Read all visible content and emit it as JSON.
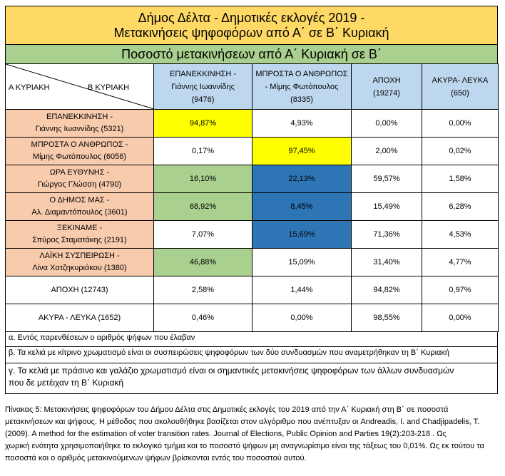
{
  "title": {
    "line1": "Δήμος Δέλτα - Δημοτικές εκλογές 2019 -",
    "line2": "Μετακινήσεις ψηφοφόρων από Α΄ σε Β΄ Κυριακή"
  },
  "subtitle": "Ποσοστό μετακινήσεων από Α΄ Κυριακή σε Β΄",
  "corner": {
    "left": "Α ΚΥΡΙΑΚΗ",
    "right": "Β ΚΥΡΙΑΚΗ"
  },
  "columns": [
    {
      "l1": "ΕΠΑΝΕΚΚΙΝΗΣΗ -",
      "l2": "Γιάννης Ιωαννίδης",
      "l3": "(9476)"
    },
    {
      "l1": "ΜΠΡΟΣΤΑ Ο ΑΝΘΡΩΠΟΣ",
      "l2": "- Μίμης Φωτόπουλος",
      "l3": "(8335)"
    },
    {
      "l1": "ΑΠΟΧΗ",
      "l2": "(19274)",
      "l3": ""
    },
    {
      "l1": "ΑΚΥΡΑ- ΛΕΥΚΑ",
      "l2": "(650)",
      "l3": ""
    }
  ],
  "rows": [
    {
      "l1": "ΕΠΑΝΕΚΚΙΝΗΣΗ -",
      "l2": "Γιάννης Ιωαννίδης (5321)",
      "cells": [
        "94,87%",
        "4,93%",
        "0,00%",
        "0,00%"
      ]
    },
    {
      "l1": "ΜΠΡΟΣΤΑ Ο ΑΝΘΡΩΠΟΣ -",
      "l2": "Μίμης Φωτόπουλος (6056)",
      "cells": [
        "0,17%",
        "97,45%",
        "2,00%",
        "0,02%"
      ]
    },
    {
      "l1": "ΩΡΑ ΕΥΘΥΝΗΣ -",
      "l2": "Γιώργος Γλώσση (4790)",
      "cells": [
        "16,10%",
        "22,13%",
        "59,57%",
        "1,58%"
      ]
    },
    {
      "l1": "Ο ΔΗΜΟΣ ΜΑΣ -",
      "l2": "Αλ. Διαμαντόπουλος (3601)",
      "cells": [
        "68,92%",
        "8,45%",
        "15,49%",
        "6,28%"
      ]
    },
    {
      "l1": "ΞΕΚΙΝΑΜΕ -",
      "l2": "Σπύρος Σταματάκης (2191)",
      "cells": [
        "7,07%",
        "15,69%",
        "71,36%",
        "4,53%"
      ]
    },
    {
      "l1": "ΛΑΪΚΗ ΣΥΣΠΕΙΡΩΣΗ -",
      "l2": "Λίνα Χατζηκυριάκου (1380)",
      "cells": [
        "46,88%",
        "15,09%",
        "31,40%",
        "4,77%"
      ]
    },
    {
      "l1": "ΑΠΟΧΗ (12743)",
      "l2": "",
      "cells": [
        "2,58%",
        "1,44%",
        "94,82%",
        "0,97%"
      ]
    },
    {
      "l1": "ΑΚΥΡΑ - ΛΕΥΚΑ (1652)",
      "l2": "",
      "cells": [
        "0,46%",
        "0,00%",
        "98,55%",
        "0,00%"
      ]
    }
  ],
  "notes": {
    "a": "α. Εντός παρενθέσεων ο αριθμός ψήφων που έλαβαν",
    "b": "β. Τα κελιά με κίτρινο χρωματισμό είναι οι συσπειρώσεις ψηφοφόρων των δύο συνδυασμών που αναμετρήθηκαν τη Β΄ Κυριακή",
    "c1": "γ. Τα κελιά με πράσινο και γαλάζιο χρωματισμό είναι οι σημαντικές μετακινήσεις ψηφοφόρων των άλλων συνδυασμών",
    "c2": "που δε μετέιχαν τη Β΄ Κυριακή"
  },
  "caption": {
    "l1": "Πίνακας 5: Μετακινήσεις ψηφοφόρων του Δήμου Δέλτα στις Δημοτικές εκλογές του 2019 από την Α΄ Κυριακή στη Β΄ σε ποσοστά",
    "l2": "μετακινήσεων και ψήφους. Η μέθοδος που ακολουθήθηκε βασίζεται στον αλγόριθμο που ανέπτυξαν οι Andreadis, I. and Chadjipadelis, T.",
    "l3": "(2009). A method for the estimation of voter transition rates. Journal of Elections, Public Opinion and Parties 19(2):203-218 . Ως",
    "l4": "χωρική ενότητα χρησιμοποιήθηκε το εκλογικό τμήμα και το ποσοστό ψήφων μη αναγνωρίσιμο είναι της τάξεως του 0,01%. Ως εκ τούτου τα",
    "l5": "ποσοστά και ο αριθμός μετακινούμενων ψήφων βρίσκονται εντός του ποσοστού αυτού."
  },
  "colors": {
    "title": "#ffd966",
    "subtitle": "#a9d08e",
    "header": "#bdd7ee",
    "rowlabel": "#f8cbad",
    "yellow": "#ffff00",
    "green": "#a9d08e",
    "blue": "#2e75b6"
  }
}
